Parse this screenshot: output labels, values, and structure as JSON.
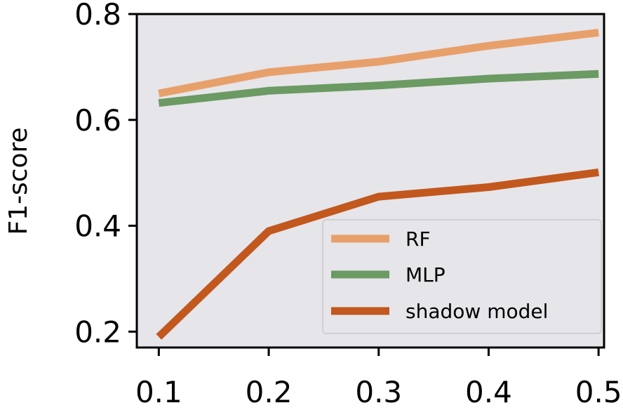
{
  "chart_data": {
    "type": "line",
    "title": "",
    "xlabel": "",
    "ylabel": "F1-score",
    "x": [
      0.1,
      0.2,
      0.3,
      0.4,
      0.5
    ],
    "x_tick_labels": [
      "0.1",
      "0.2",
      "0.3",
      "0.4",
      "0.5"
    ],
    "y_ticks": [
      0.2,
      0.4,
      0.6,
      0.8
    ],
    "y_tick_labels": [
      "0.2",
      "0.4",
      "0.6",
      "0.8"
    ],
    "xlim": [
      0.08,
      0.505
    ],
    "ylim": [
      0.17,
      0.8
    ],
    "grid": false,
    "background_color": "#e6e5ea",
    "legend_position": "lower-right",
    "series": [
      {
        "name": "RF",
        "color": "#e8a06b",
        "values": [
          0.65,
          0.69,
          0.71,
          0.74,
          0.765
        ]
      },
      {
        "name": "MLP",
        "color": "#6b9a62",
        "values": [
          0.632,
          0.655,
          0.665,
          0.678,
          0.687
        ]
      },
      {
        "name": "shadow model",
        "color": "#c2581e",
        "values": [
          0.19,
          0.39,
          0.455,
          0.473,
          0.501
        ]
      }
    ]
  }
}
